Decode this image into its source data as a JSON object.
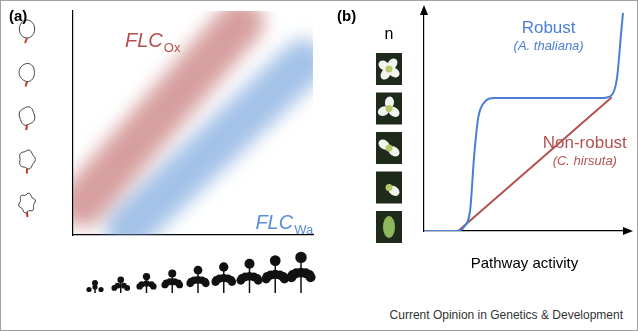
{
  "chart_data": [
    {
      "type": "line",
      "title": "(a)",
      "tick_labels": false,
      "grid": false,
      "xlim": [
        0,
        100
      ],
      "ylim": [
        0,
        100
      ],
      "series": [
        {
          "name": "FLCOx",
          "color": "#b4514f",
          "line_style": "band",
          "x": [
            4,
            70
          ],
          "values": [
            14,
            95
          ]
        },
        {
          "name": "FLCWa",
          "color": "#5a8fd6",
          "line_style": "band",
          "x": [
            23,
            96
          ],
          "values": [
            3,
            77
          ]
        }
      ]
    },
    {
      "type": "line",
      "title": "(b)",
      "tick_labels": false,
      "grid": false,
      "x_label": "Pathway activity",
      "y_label": "n",
      "xlim": [
        0,
        100
      ],
      "ylim": [
        0,
        100
      ],
      "series": [
        {
          "name": "Robust (A. thaliana)",
          "color": "#4a7fd4",
          "line_style": "solid",
          "x": [
            0,
            16,
            20,
            23,
            25,
            27,
            30,
            35,
            60,
            88,
            93,
            96,
            98,
            99
          ],
          "values": [
            0,
            0,
            2,
            10,
            35,
            52,
            59,
            61,
            61,
            61,
            62,
            70,
            90,
            100
          ]
        },
        {
          "name": "Non-robust (C. hirsuta)",
          "color": "#b4514f",
          "line_style": "solid",
          "x": [
            17,
            93
          ],
          "values": [
            0,
            61
          ]
        }
      ]
    }
  ],
  "footer": "Current Opinion in Genetics & Development"
}
